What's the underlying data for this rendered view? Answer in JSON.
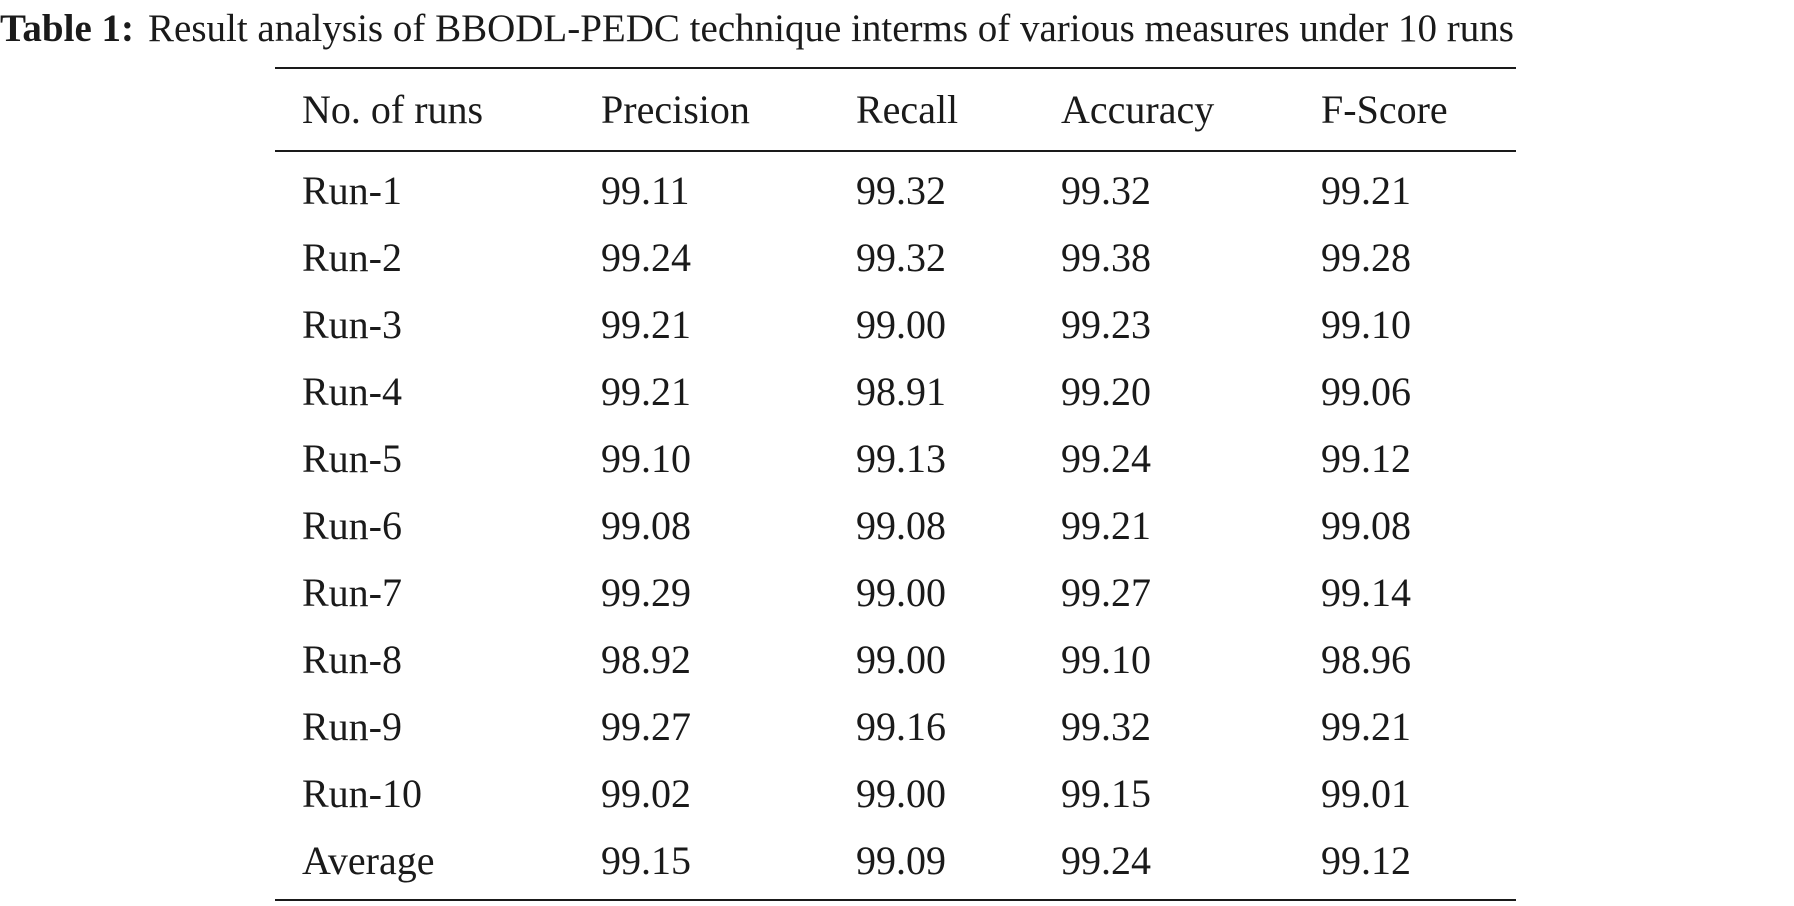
{
  "caption": {
    "label": "Table 1:",
    "text": "Result analysis of BBODL-PEDC technique interms of various measures under 10 runs"
  },
  "table": {
    "headers": [
      "No. of runs",
      "Precision",
      "Recall",
      "Accuracy",
      "F-Score"
    ],
    "rows": [
      [
        "Run-1",
        "99.11",
        "99.32",
        "99.32",
        "99.21"
      ],
      [
        "Run-2",
        "99.24",
        "99.32",
        "99.38",
        "99.28"
      ],
      [
        "Run-3",
        "99.21",
        "99.00",
        "99.23",
        "99.10"
      ],
      [
        "Run-4",
        "99.21",
        "98.91",
        "99.20",
        "99.06"
      ],
      [
        "Run-5",
        "99.10",
        "99.13",
        "99.24",
        "99.12"
      ],
      [
        "Run-6",
        "99.08",
        "99.08",
        "99.21",
        "99.08"
      ],
      [
        "Run-7",
        "99.29",
        "99.00",
        "99.27",
        "99.14"
      ],
      [
        "Run-8",
        "98.92",
        "99.00",
        "99.10",
        "98.96"
      ],
      [
        "Run-9",
        "99.27",
        "99.16",
        "99.32",
        "99.21"
      ],
      [
        "Run-10",
        "99.02",
        "99.00",
        "99.15",
        "99.01"
      ],
      [
        "Average",
        "99.15",
        "99.09",
        "99.24",
        "99.12"
      ]
    ]
  }
}
